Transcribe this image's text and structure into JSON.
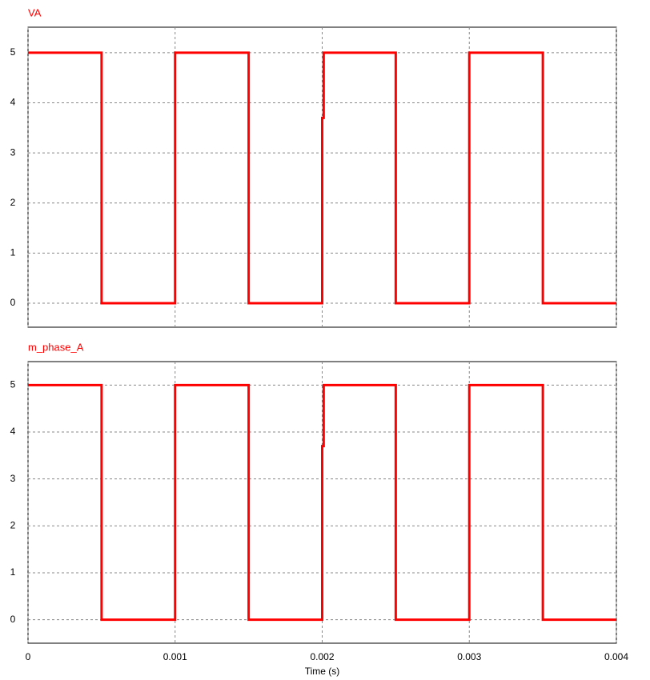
{
  "chart_data": [
    {
      "type": "line",
      "title": "VA",
      "x": [
        0,
        0.0005,
        0.0005,
        0.001,
        0.001,
        0.0015,
        0.0015,
        0.002,
        0.002,
        0.00201,
        0.00201,
        0.0025,
        0.0025,
        0.003,
        0.003,
        0.0035,
        0.0035,
        0.004
      ],
      "series": [
        {
          "name": "VA",
          "color": "#ff0000",
          "values": [
            5,
            5,
            0,
            0,
            5,
            5,
            0,
            0,
            3.7,
            3.7,
            5,
            5,
            0,
            0,
            5,
            5,
            0,
            0
          ]
        }
      ],
      "xlim": [
        0,
        0.004
      ],
      "xticks": [
        0,
        0.001,
        0.002,
        0.003,
        0.004
      ],
      "ylim": [
        -0.48,
        5.51
      ],
      "yticks": [
        0,
        1,
        2,
        3,
        4,
        5
      ],
      "grid": true
    },
    {
      "type": "line",
      "title": "m_phase_A",
      "xlabel": "Time (s)",
      "x": [
        0,
        0.0005,
        0.0005,
        0.001,
        0.001,
        0.0015,
        0.0015,
        0.002,
        0.002,
        0.00201,
        0.00201,
        0.0025,
        0.0025,
        0.003,
        0.003,
        0.0035,
        0.0035,
        0.004
      ],
      "series": [
        {
          "name": "m_phase_A",
          "color": "#ff0000",
          "values": [
            5,
            5,
            0,
            0,
            5,
            5,
            0,
            0,
            3.7,
            3.7,
            5,
            5,
            0,
            0,
            5,
            5,
            0,
            0
          ]
        }
      ],
      "xlim": [
        0,
        0.004
      ],
      "xticks": [
        0,
        0.001,
        0.002,
        0.003,
        0.004
      ],
      "ylim": [
        -0.5,
        5.5
      ],
      "yticks": [
        0,
        1,
        2,
        3,
        4,
        5
      ],
      "grid": true
    }
  ]
}
